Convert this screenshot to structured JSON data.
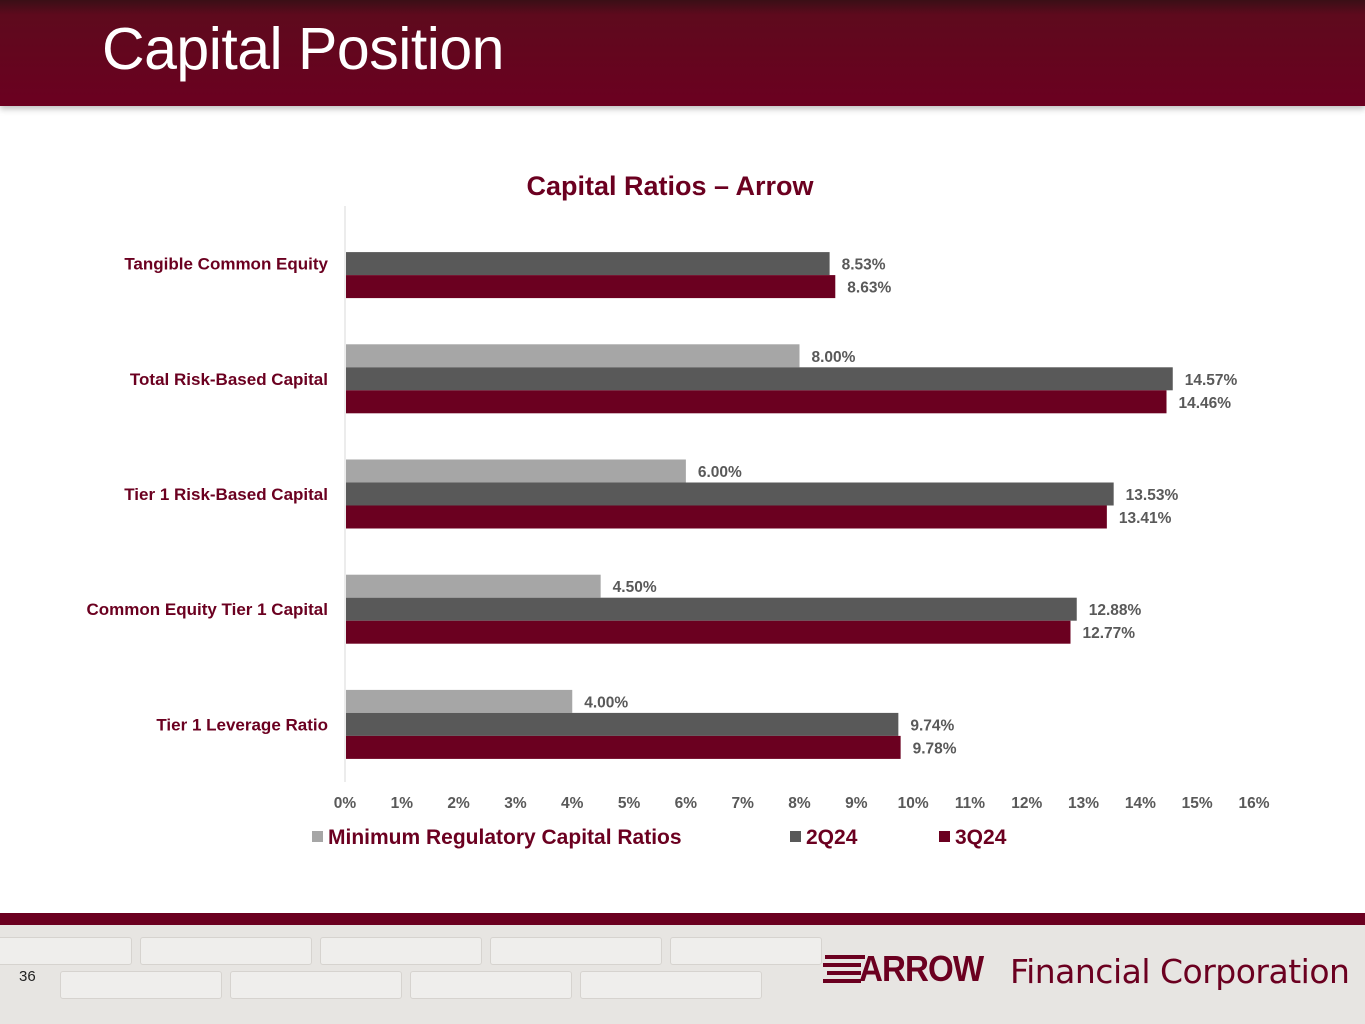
{
  "slide": {
    "title": "Capital Position",
    "page_number": "36"
  },
  "logo": {
    "mark": "ARROW",
    "name": "Financial Corporation"
  },
  "colors": {
    "header": "#6b0020",
    "min_series": "#a6a6a6",
    "q2_series": "#595959",
    "q3_series": "#6b0020",
    "category_label": "#6b0020"
  },
  "chart_data": {
    "type": "bar",
    "orientation": "horizontal",
    "title": "Capital Ratios – Arrow",
    "categories": [
      "Tangible Common Equity",
      "Total Risk-Based Capital",
      "Tier 1 Risk-Based Capital",
      "Common Equity Tier 1 Capital",
      "Tier 1 Leverage Ratio"
    ],
    "series": [
      {
        "name": "Minimum Regulatory Capital Ratios",
        "color": "#a6a6a6",
        "values": [
          null,
          8.0,
          6.0,
          4.5,
          4.0
        ],
        "labels": [
          "",
          "8.00%",
          "6.00%",
          "4.50%",
          "4.00%"
        ]
      },
      {
        "name": "2Q24",
        "color": "#595959",
        "values": [
          8.53,
          14.57,
          13.53,
          12.88,
          9.74
        ],
        "labels": [
          "8.53%",
          "14.57%",
          "13.53%",
          "12.88%",
          "9.74%"
        ]
      },
      {
        "name": "3Q24",
        "color": "#6b0020",
        "values": [
          8.63,
          14.46,
          13.41,
          12.77,
          9.78
        ],
        "labels": [
          "8.63%",
          "14.46%",
          "13.41%",
          "12.77%",
          "9.78%"
        ]
      }
    ],
    "xlim": [
      0,
      16
    ],
    "xticks": [
      "0%",
      "1%",
      "2%",
      "3%",
      "4%",
      "5%",
      "6%",
      "7%",
      "8%",
      "9%",
      "10%",
      "11%",
      "12%",
      "13%",
      "14%",
      "15%",
      "16%"
    ],
    "grid": false,
    "legend": "bottom"
  }
}
